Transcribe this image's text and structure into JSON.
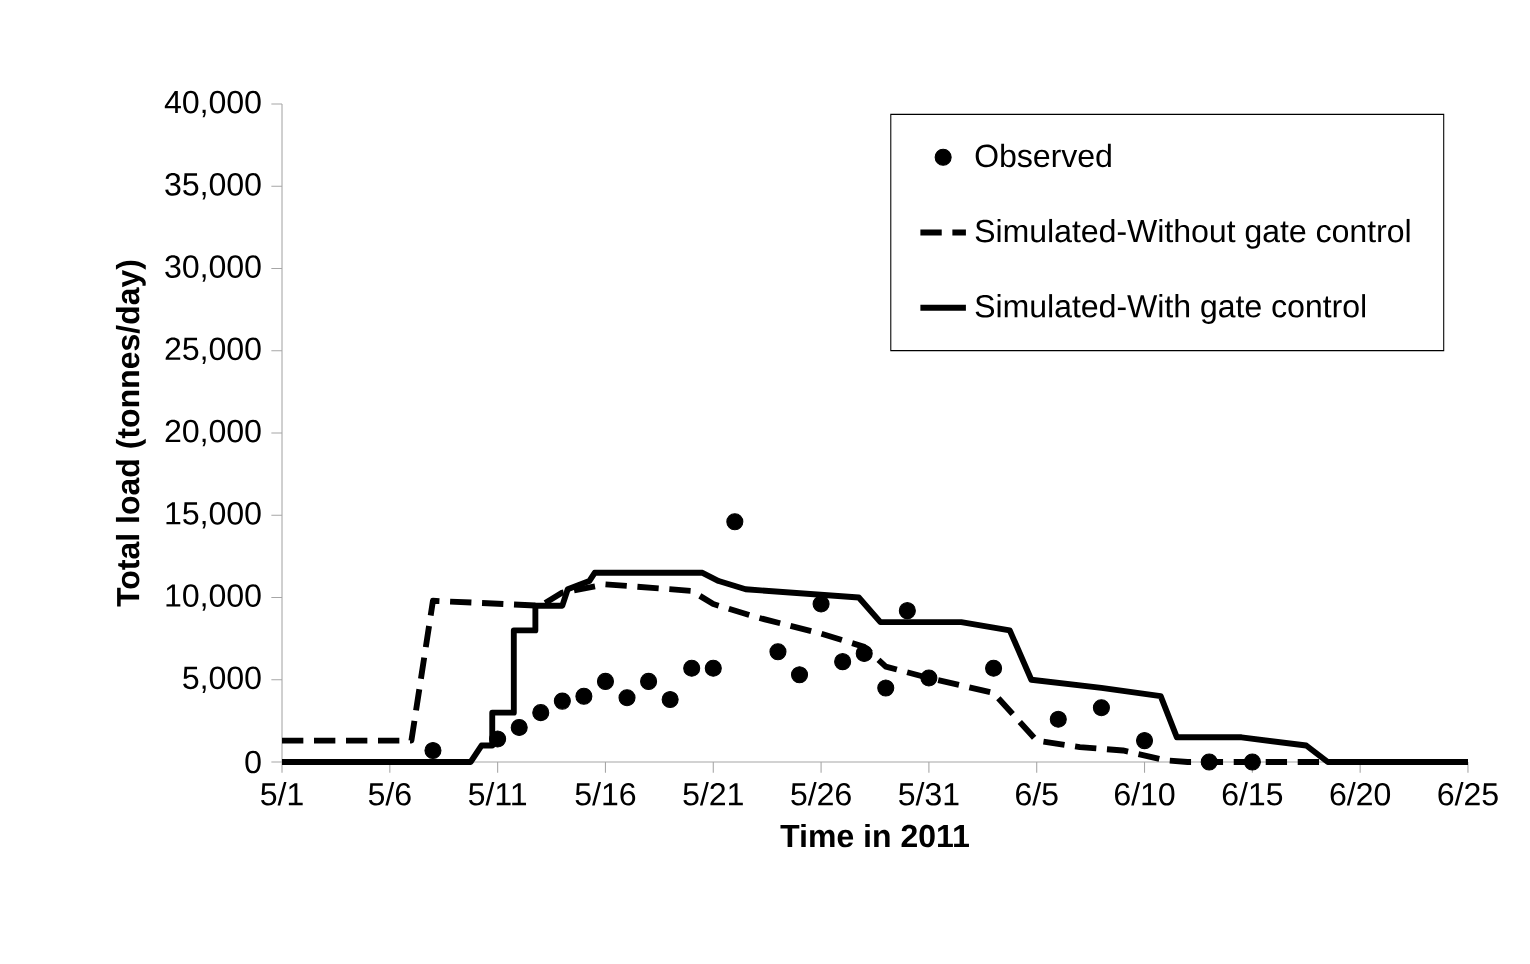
{
  "chart_data": {
    "type": "line",
    "xlabel": "Time in 2011",
    "ylabel": "Total load (tonnes/day)",
    "xlim": [
      "2011-05-01",
      "2011-06-25"
    ],
    "xticks": [
      {
        "value": "2011-05-01",
        "label": "5/1"
      },
      {
        "value": "2011-05-06",
        "label": "5/6"
      },
      {
        "value": "2011-05-11",
        "label": "5/11"
      },
      {
        "value": "2011-05-16",
        "label": "5/16"
      },
      {
        "value": "2011-05-21",
        "label": "5/21"
      },
      {
        "value": "2011-05-26",
        "label": "5/26"
      },
      {
        "value": "2011-05-31",
        "label": "5/31"
      },
      {
        "value": "2011-06-05",
        "label": "6/5"
      },
      {
        "value": "2011-06-10",
        "label": "6/10"
      },
      {
        "value": "2011-06-15",
        "label": "6/15"
      },
      {
        "value": "2011-06-20",
        "label": "6/20"
      },
      {
        "value": "2011-06-25",
        "label": "6/25"
      }
    ],
    "ylim": [
      0,
      40000
    ],
    "yticks": [
      0,
      {
        "value": 5000,
        "label": "5,000"
      },
      {
        "value": 10000,
        "label": "10,000"
      },
      {
        "value": 15000,
        "label": "15,000"
      },
      {
        "value": 20000,
        "label": "20,000"
      },
      {
        "value": 25000,
        "label": "25,000"
      },
      {
        "value": 30000,
        "label": "30,000"
      },
      {
        "value": 35000,
        "label": "35,000"
      },
      {
        "value": 40000,
        "label": "40,000"
      }
    ],
    "grid": false,
    "legend": "top right",
    "series": [
      {
        "name": "Observed",
        "type": "scatter",
        "marker": "circle",
        "color": "#000000",
        "x": [
          "2011-05-08",
          "2011-05-11",
          "2011-05-12",
          "2011-05-13",
          "2011-05-14",
          "2011-05-15",
          "2011-05-16",
          "2011-05-17",
          "2011-05-18",
          "2011-05-19",
          "2011-05-20",
          "2011-05-21",
          "2011-05-22",
          "2011-05-24",
          "2011-05-25",
          "2011-05-26",
          "2011-05-27",
          "2011-05-28",
          "2011-05-29",
          "2011-05-30",
          "2011-05-31",
          "2011-06-03",
          "2011-06-06",
          "2011-06-08",
          "2011-06-10",
          "2011-06-13",
          "2011-06-15"
        ],
        "values": [
          700,
          1400,
          2100,
          3000,
          3700,
          4000,
          4900,
          3900,
          4900,
          3800,
          5700,
          5700,
          14600,
          6700,
          5300,
          9600,
          6100,
          6600,
          4500,
          9200,
          5100,
          5700,
          2600,
          3300,
          1300,
          0,
          0
        ]
      },
      {
        "name": "Simulated-Without gate control",
        "line_style": "dashed",
        "marker": "none",
        "color": "#000000",
        "x": [
          "2011-05-01",
          "2011-05-07",
          "2011-05-08",
          "2011-05-13",
          "2011-05-14",
          "2011-05-16",
          "2011-05-20",
          "2011-05-21",
          "2011-05-23",
          "2011-05-26",
          "2011-05-28",
          "2011-05-29",
          "2011-05-31",
          "2011-06-03",
          "2011-06-05",
          "2011-06-07",
          "2011-06-09",
          "2011-06-11",
          "2011-06-12",
          "2011-06-25"
        ],
        "values": [
          1300,
          1300,
          9800,
          9500,
          10300,
          10800,
          10400,
          9600,
          8800,
          7800,
          7000,
          5800,
          5100,
          4200,
          1300,
          900,
          700,
          100,
          0,
          0
        ]
      },
      {
        "name": "Simulated-With gate control",
        "line_style": "solid",
        "marker": "none",
        "color": "#000000",
        "x": [
          "2011-05-01",
          "2011-05-09T18:00",
          "2011-05-10T06:00",
          "2011-05-10T18:00",
          "2011-05-10T18:00",
          "2011-05-11T18:00",
          "2011-05-11T18:00",
          "2011-05-12T18:00",
          "2011-05-12T18:00",
          "2011-05-14",
          "2011-05-14T06:00",
          "2011-05-15T06:00",
          "2011-05-15T12:00",
          "2011-05-20T12:00",
          "2011-05-21T06:00",
          "2011-05-22T12:00",
          "2011-05-27T18:00",
          "2011-05-28T18:00",
          "2011-06-01T12:00",
          "2011-06-03T18:00",
          "2011-06-04T18:00",
          "2011-06-08",
          "2011-06-10T18:00",
          "2011-06-11T12:00",
          "2011-06-14T12:00",
          "2011-06-17T12:00",
          "2011-06-18T12:00",
          "2011-06-25"
        ],
        "values": [
          0,
          0,
          1000,
          1000,
          3000,
          3000,
          8000,
          8000,
          9500,
          9500,
          10500,
          11000,
          11500,
          11500,
          11000,
          10500,
          10000,
          8500,
          8500,
          8000,
          5000,
          4500,
          4000,
          1500,
          1500,
          1000,
          0,
          0
        ]
      }
    ]
  }
}
